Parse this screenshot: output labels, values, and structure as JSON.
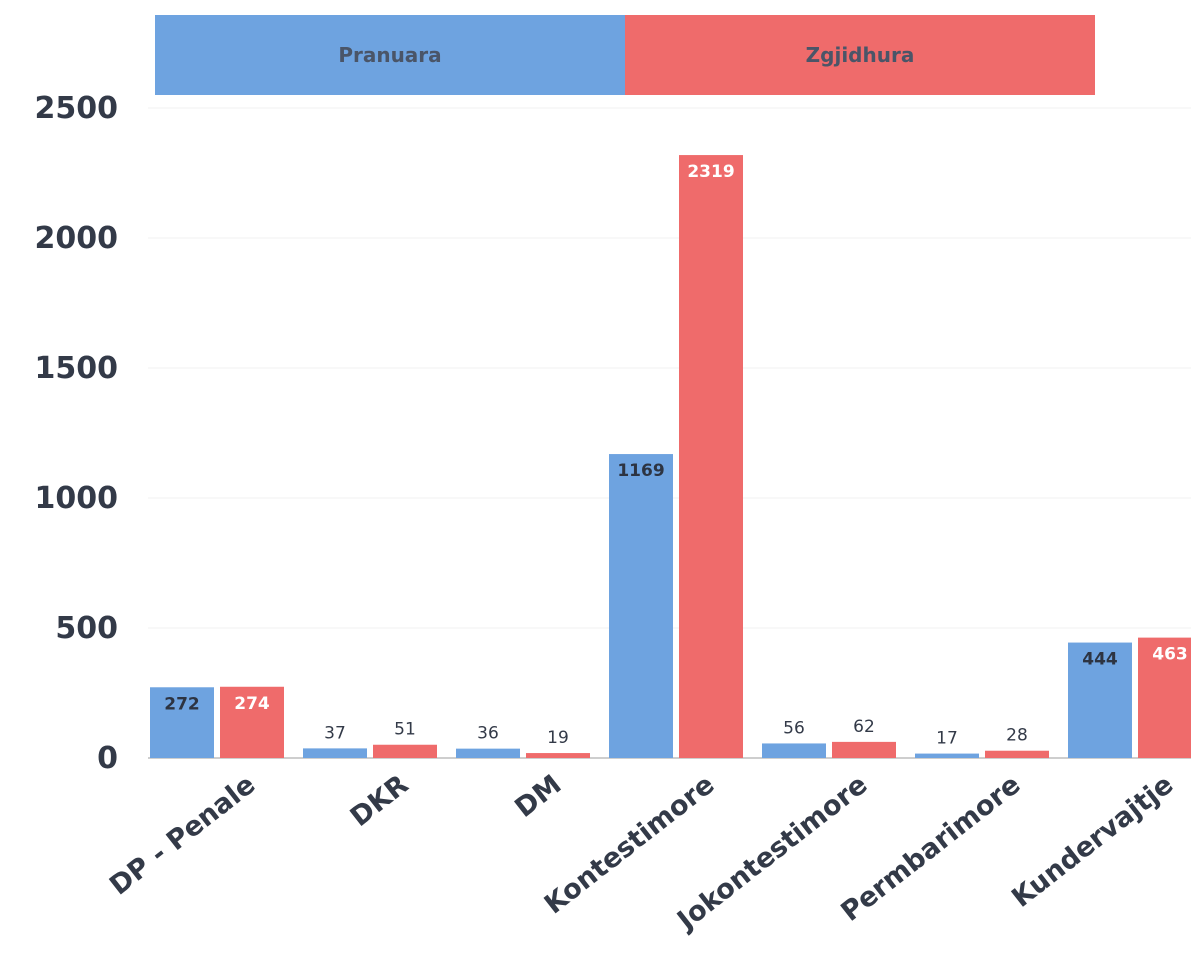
{
  "chart_data": {
    "type": "bar",
    "categories": [
      "DP - Penale",
      "DKR",
      "DM",
      "Kontestimore",
      "Jokontestimore",
      "Permbarimore",
      "Kundervajtje"
    ],
    "series": [
      {
        "name": "Pranuara",
        "values": [
          272,
          37,
          36,
          1169,
          56,
          17,
          444
        ],
        "color": "#6ea3e0"
      },
      {
        "name": "Zgjidhura",
        "values": [
          274,
          51,
          19,
          2319,
          62,
          28,
          463
        ],
        "color": "#ef6b6b"
      }
    ],
    "yticks": [
      "0",
      "500",
      "1000",
      "1500",
      "2000",
      "2500"
    ],
    "ylim": [
      0,
      2500
    ],
    "legend_position": "top",
    "grid": true,
    "title": "",
    "xlabel": "",
    "ylabel": ""
  }
}
